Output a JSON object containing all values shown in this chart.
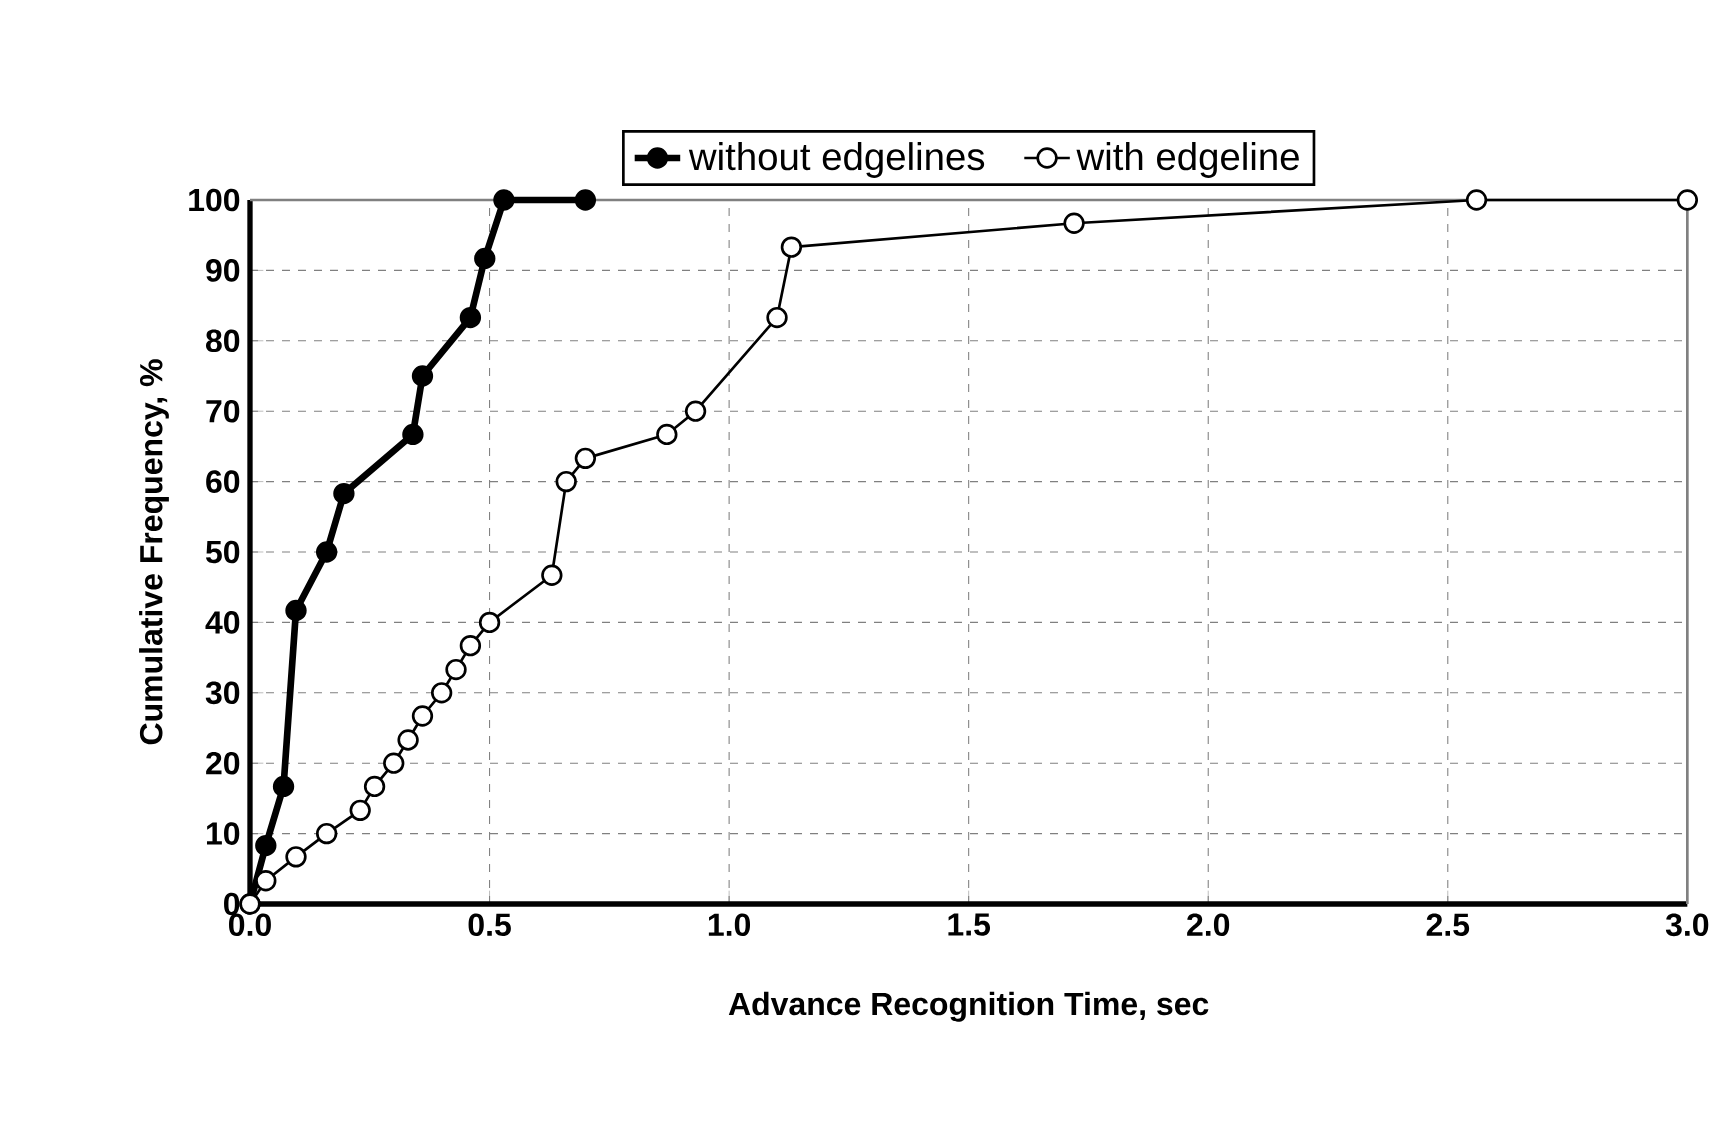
{
  "chart_data": {
    "type": "line",
    "xlabel": "Advance Recognition Time, sec",
    "ylabel": "Cumulative Frequency, %",
    "series": [
      {
        "name": "without edgelines",
        "color": "#000000",
        "x": [
          0,
          0.033,
          0.07,
          0.096,
          0.16,
          0.196,
          0.34,
          0.36,
          0.46,
          0.49,
          0.53,
          0.7
        ],
        "values": [
          0,
          8.3,
          16.7,
          41.7,
          50,
          58.3,
          66.7,
          75,
          83.3,
          91.7,
          100,
          100
        ]
      },
      {
        "name": "with edgeline",
        "color": "#000000",
        "x": [
          0,
          0.033,
          0.096,
          0.16,
          0.23,
          0.26,
          0.3,
          0.33,
          0.36,
          0.4,
          0.43,
          0.46,
          0.5,
          0.63,
          0.66,
          0.7,
          0.87,
          0.93,
          1.1,
          1.13,
          1.72,
          2.56,
          3.0
        ],
        "values": [
          0,
          3.3,
          6.7,
          10,
          13.3,
          16.7,
          20,
          23.3,
          26.7,
          30,
          33.3,
          36.7,
          40,
          46.7,
          60,
          63.3,
          66.7,
          70,
          83.3,
          93.3,
          96.7,
          100,
          100
        ]
      }
    ],
    "xlim": [
      0,
      3.0
    ],
    "ylim": [
      0,
      100
    ],
    "xticks": [
      {
        "value": 0,
        "label": "0.0"
      },
      {
        "value": 0.5,
        "label": "0.5"
      },
      {
        "value": 1,
        "label": "1.0"
      },
      {
        "value": 1.5,
        "label": "1.5"
      },
      {
        "value": 2,
        "label": "2.0"
      },
      {
        "value": 2.5,
        "label": "2.5"
      },
      {
        "value": 3,
        "label": "3.0"
      }
    ],
    "yticks": [
      0,
      10,
      20,
      30,
      40,
      50,
      60,
      70,
      80,
      90,
      100
    ],
    "grid": true,
    "legend": "top",
    "marker": "circle",
    "line_style": "solid"
  }
}
